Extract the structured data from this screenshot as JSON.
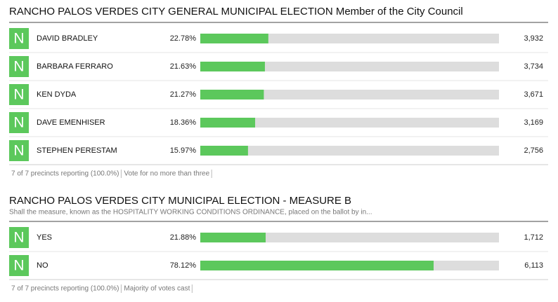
{
  "contests": [
    {
      "title": "RANCHO PALOS VERDES CITY GENERAL MUNICIPAL ELECTION Member of the City Council",
      "xlim": [
        0,
        100
      ],
      "rows": [
        {
          "badge": "N",
          "name": "DAVID BRADLEY",
          "percent": 22.78,
          "percent_label": "22.78%",
          "votes": "3,932"
        },
        {
          "badge": "N",
          "name": "BARBARA FERRARO",
          "percent": 21.63,
          "percent_label": "21.63%",
          "votes": "3,734"
        },
        {
          "badge": "N",
          "name": "KEN DYDA",
          "percent": 21.27,
          "percent_label": "21.27%",
          "votes": "3,671"
        },
        {
          "badge": "N",
          "name": "DAVE EMENHISER",
          "percent": 18.36,
          "percent_label": "18.36%",
          "votes": "3,169"
        },
        {
          "badge": "N",
          "name": "STEPHEN PERESTAM",
          "percent": 15.97,
          "percent_label": "15.97%",
          "votes": "2,756"
        }
      ],
      "footer": [
        "7 of 7 precincts reporting (100.0%)",
        "Vote for no more than three"
      ]
    },
    {
      "title": "RANCHO PALOS VERDES CITY MUNICIPAL ELECTION - MEASURE B",
      "subtitle": "Shall the measure, known as the HOSPITALITY WORKING CONDITIONS ORDINANCE, placed on the ballot by in...",
      "xlim": [
        0,
        100
      ],
      "rows": [
        {
          "badge": "N",
          "name": "YES",
          "percent": 21.88,
          "percent_label": "21.88%",
          "votes": "1,712"
        },
        {
          "badge": "N",
          "name": "NO",
          "percent": 78.12,
          "percent_label": "78.12%",
          "votes": "6,113"
        }
      ],
      "footer": [
        "7 of 7 precincts reporting (100.0%)",
        "Majority of votes cast"
      ]
    }
  ]
}
